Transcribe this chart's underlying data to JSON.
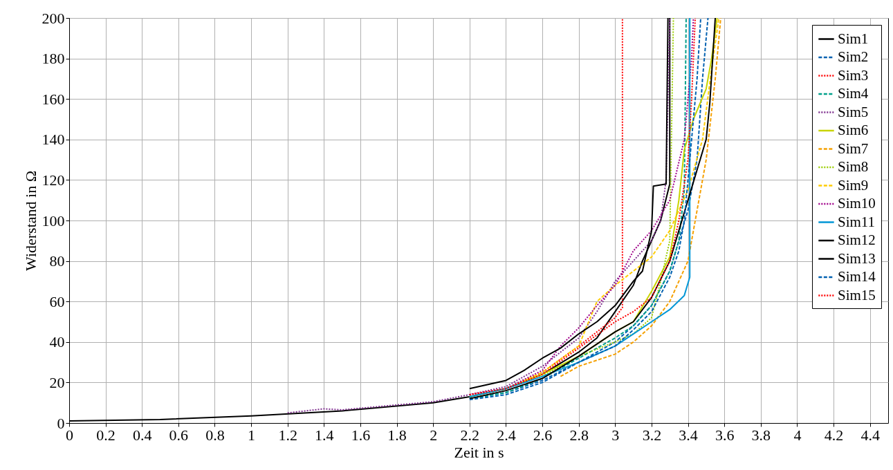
{
  "chart_data": {
    "type": "line",
    "xlabel": "Zeit in s",
    "ylabel": "Widerstand in Ω",
    "xlim": [
      0,
      4.5
    ],
    "ylim": [
      0,
      200
    ],
    "xticks": [
      0,
      0.2,
      0.4,
      0.6,
      0.8,
      1,
      1.2,
      1.4,
      1.6,
      1.8,
      2,
      2.2,
      2.4,
      2.6,
      2.8,
      3,
      3.2,
      3.4,
      3.6,
      3.8,
      4,
      4.2,
      4.4
    ],
    "yticks": [
      0,
      20,
      40,
      60,
      80,
      100,
      120,
      140,
      160,
      180,
      200
    ],
    "grid": true,
    "legend": "top right",
    "series": [
      {
        "name": "Sim1",
        "color": "#000000",
        "line_style": "solid",
        "x": [
          0,
          0.5,
          1,
          1.5,
          2,
          2.2,
          2.4,
          2.6,
          2.8,
          2.9,
          3.0,
          3.1,
          3.15,
          3.2,
          3.25,
          3.3,
          3.3
        ],
        "values": [
          1,
          1.7,
          3.5,
          6,
          10,
          13,
          17,
          24,
          35,
          42,
          55,
          68,
          80,
          90,
          100,
          118,
          200
        ]
      },
      {
        "name": "Sim2",
        "color": "#0060b0",
        "line_style": "dashed",
        "x": [
          2.2,
          2.4,
          2.6,
          2.8,
          3.0,
          3.1,
          3.2,
          3.3,
          3.35,
          3.4,
          3.45,
          3.48,
          3.51
        ],
        "values": [
          12,
          15,
          21,
          30,
          40,
          48,
          58,
          75,
          90,
          105,
          130,
          170,
          200
        ]
      },
      {
        "name": "Sim3",
        "color": "#ff0000",
        "line_style": "dotted",
        "x": [
          2.2,
          2.4,
          2.6,
          2.8,
          2.9,
          3.0,
          3.04,
          3.04
        ],
        "values": [
          14,
          17,
          25,
          38,
          45,
          52,
          57,
          200
        ]
      },
      {
        "name": "Sim4",
        "color": "#00a08a",
        "line_style": "dashed",
        "x": [
          2.2,
          2.4,
          2.6,
          2.8,
          3.0,
          3.1,
          3.2,
          3.3,
          3.35,
          3.38,
          3.39
        ],
        "values": [
          12,
          15,
          22,
          32,
          42,
          48,
          58,
          75,
          90,
          115,
          200
        ]
      },
      {
        "name": "Sim5",
        "color": "#7e2f8e",
        "line_style": "dotted",
        "x": [
          1.2,
          1.4,
          1.5,
          2,
          2.2,
          2.4,
          2.6,
          2.8,
          2.9,
          3.0,
          3.1,
          3.2,
          3.25,
          3.28,
          3.3
        ],
        "values": [
          5,
          7,
          6.5,
          10.5,
          14,
          18,
          28,
          42,
          55,
          70,
          80,
          90,
          100,
          120,
          200
        ]
      },
      {
        "name": "Sim6",
        "color": "#c8d400",
        "line_style": "solid",
        "x": [
          2.2,
          2.4,
          2.6,
          2.8,
          3.0,
          3.1,
          3.2,
          3.3,
          3.35,
          3.38,
          3.43,
          3.5,
          3.53,
          3.56
        ],
        "values": [
          13,
          17,
          24,
          33,
          45,
          50,
          65,
          82,
          110,
          135,
          150,
          165,
          180,
          200
        ]
      },
      {
        "name": "Sim7",
        "color": "#f5a000",
        "line_style": "dashed",
        "x": [
          2.7,
          2.8,
          3.0,
          3.1,
          3.2,
          3.3,
          3.4,
          3.45,
          3.5,
          3.55,
          3.58
        ],
        "values": [
          23,
          28,
          34,
          40,
          48,
          60,
          80,
          105,
          130,
          170,
          200
        ]
      },
      {
        "name": "Sim8",
        "color": "#9acd00",
        "line_style": "dotted",
        "x": [
          2.6,
          2.8,
          3.0,
          3.1,
          3.2,
          3.25,
          3.3,
          3.32
        ],
        "values": [
          23,
          33,
          40,
          44,
          52,
          70,
          90,
          200
        ]
      },
      {
        "name": "Sim9",
        "color": "#ffcc00",
        "line_style": "dashed",
        "x": [
          2.5,
          2.6,
          2.8,
          2.9,
          3.0,
          3.1,
          3.2,
          3.3,
          3.4,
          3.48,
          3.53,
          3.57
        ],
        "values": [
          21,
          25,
          38,
          60,
          68,
          75,
          82,
          95,
          115,
          140,
          175,
          200
        ]
      },
      {
        "name": "Sim10",
        "color": "#a0008a",
        "line_style": "dotted",
        "x": [
          2.2,
          2.4,
          2.6,
          2.7,
          2.8,
          2.9,
          3.0,
          3.1,
          3.2,
          3.3,
          3.38,
          3.42,
          3.43
        ],
        "values": [
          14,
          17,
          26,
          38,
          47,
          58,
          68,
          85,
          95,
          110,
          140,
          180,
          200
        ]
      },
      {
        "name": "Sim11",
        "color": "#0096d6",
        "line_style": "solid",
        "x": [
          2.2,
          2.4,
          2.6,
          2.8,
          3.0,
          3.1,
          3.2,
          3.3,
          3.38,
          3.41,
          3.41
        ],
        "values": [
          13,
          17,
          23,
          30,
          38,
          44,
          50,
          56,
          63,
          72,
          200
        ]
      },
      {
        "name": "Sim12",
        "color": "#000000",
        "line_style": "solid",
        "x": [
          2.2,
          2.4,
          2.5,
          2.6,
          2.7,
          2.8,
          2.9,
          3.0,
          3.1,
          3.15,
          3.2,
          3.21,
          3.28,
          3.29
        ],
        "values": [
          17,
          21,
          26,
          32,
          37,
          44,
          50,
          58,
          70,
          75,
          95,
          117,
          118,
          200
        ]
      },
      {
        "name": "Sim13",
        "color": "#000000",
        "line_style": "solid",
        "x": [
          2.2,
          2.4,
          2.6,
          2.8,
          3.0,
          3.1,
          3.2,
          3.3,
          3.35,
          3.4,
          3.45,
          3.5,
          3.52,
          3.55
        ],
        "values": [
          12,
          16,
          22,
          33,
          45,
          50,
          62,
          80,
          95,
          110,
          125,
          140,
          158,
          200
        ]
      },
      {
        "name": "Sim14",
        "color": "#0060b0",
        "line_style": "dashed",
        "x": [
          2.2,
          2.4,
          2.6,
          2.8,
          3.0,
          3.1,
          3.2,
          3.3,
          3.35,
          3.38,
          3.42,
          3.45,
          3.47
        ],
        "values": [
          11.5,
          14,
          20,
          30,
          38,
          46,
          55,
          72,
          85,
          100,
          140,
          170,
          200
        ]
      },
      {
        "name": "Sim15",
        "color": "#ff0000",
        "line_style": "dotted",
        "x": [
          2.2,
          2.4,
          2.6,
          2.8,
          3.0,
          3.1,
          3.2,
          3.3,
          3.35,
          3.4,
          3.42,
          3.44
        ],
        "values": [
          14,
          17,
          24,
          37,
          50,
          55,
          62,
          80,
          100,
          130,
          160,
          200
        ]
      }
    ]
  }
}
